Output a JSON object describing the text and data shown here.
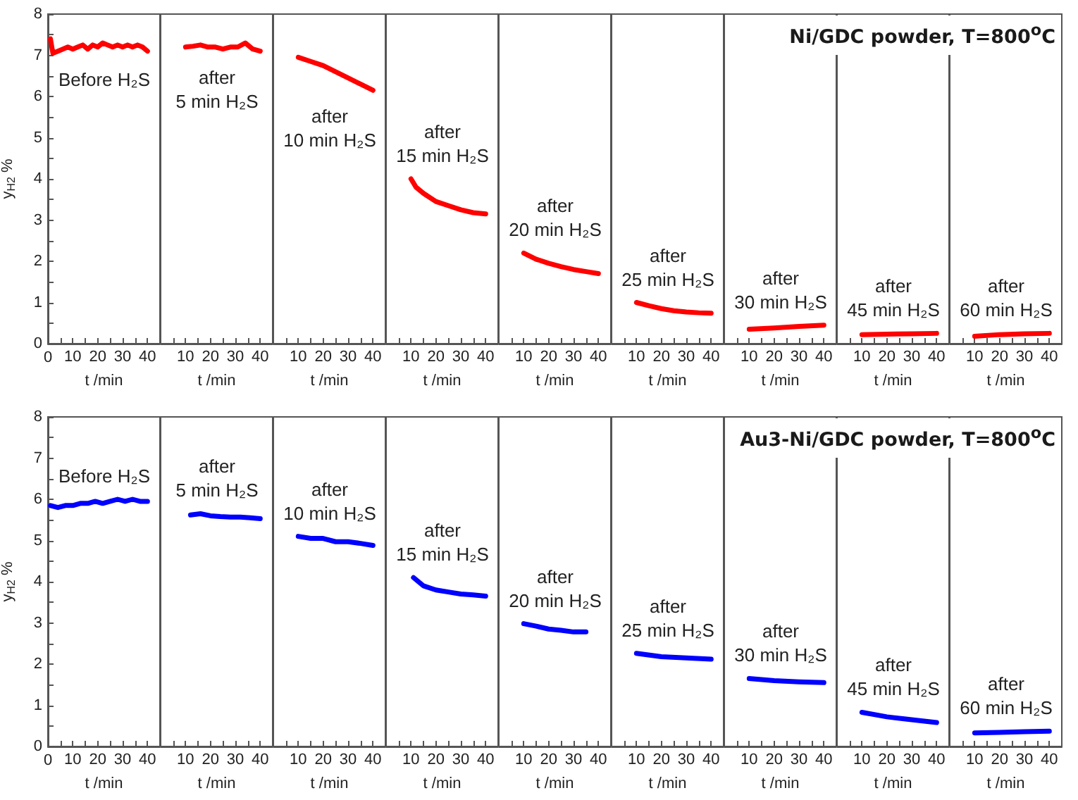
{
  "chart_data": [
    {
      "type": "line",
      "ylabel": "y$_{H2}$ %",
      "xlabel": "t /min",
      "annotations": [
        "Before H₂S"
      ],
      "xlim": [
        0,
        45
      ],
      "ylim": [
        0,
        8
      ],
      "xticks": [
        0,
        {
          "value": 5,
          "label": null
        },
        10,
        {
          "value": 15,
          "label": null
        },
        20,
        {
          "value": 25,
          "label": null
        },
        30,
        {
          "value": 35,
          "label": null
        },
        40
      ],
      "yticks": [
        0,
        {
          "value": 0.5,
          "label": null
        },
        1,
        {
          "value": 1.5,
          "label": null
        },
        2,
        {
          "value": 2.5,
          "label": null
        },
        3,
        {
          "value": 3.5,
          "label": null
        },
        4,
        {
          "value": 4.5,
          "label": null
        },
        5,
        {
          "value": 5.5,
          "label": null
        },
        6,
        {
          "value": 6.5,
          "label": null
        },
        7,
        {
          "value": 7.5,
          "label": null
        },
        8
      ],
      "series": [
        {
          "color": "#ff0000",
          "x": [
            1,
            2,
            4,
            6,
            8,
            10,
            12,
            14,
            16,
            18,
            20,
            22,
            24,
            26,
            28,
            30,
            32,
            34,
            36,
            38,
            40
          ],
          "values": [
            7.4,
            7.05,
            7.1,
            7.15,
            7.2,
            7.15,
            7.2,
            7.25,
            7.15,
            7.25,
            7.2,
            7.3,
            7.25,
            7.2,
            7.25,
            7.2,
            7.25,
            7.2,
            7.25,
            7.2,
            7.1
          ]
        }
      ],
      "marker": "none",
      "line_style": "solid"
    },
    {
      "type": "line",
      "xlabel": "t /min",
      "annotations": [
        "after\n5 min H₂S"
      ],
      "xlim": [
        0,
        45
      ],
      "ylim": [
        0,
        8
      ],
      "tick_labels": "x",
      "xticks": [
        {
          "value": 5,
          "label": null
        },
        10,
        {
          "value": 15,
          "label": null
        },
        20,
        {
          "value": 25,
          "label": null
        },
        30,
        {
          "value": 35,
          "label": null
        },
        40
      ],
      "series": [
        {
          "color": "#ff0000",
          "x": [
            10,
            13,
            16,
            19,
            22,
            25,
            28,
            31,
            34,
            37,
            40
          ],
          "values": [
            7.2,
            7.22,
            7.25,
            7.2,
            7.2,
            7.15,
            7.2,
            7.2,
            7.3,
            7.15,
            7.1
          ]
        }
      ],
      "marker": "none",
      "line_style": "solid"
    },
    {
      "type": "line",
      "xlabel": "t /min",
      "annotations": [
        "after\n10 min H₂S"
      ],
      "xlim": [
        0,
        45
      ],
      "ylim": [
        0,
        8
      ],
      "tick_labels": "x",
      "xticks": [
        {
          "value": 5,
          "label": null
        },
        10,
        {
          "value": 15,
          "label": null
        },
        20,
        {
          "value": 25,
          "label": null
        },
        30,
        {
          "value": 35,
          "label": null
        },
        40
      ],
      "series": [
        {
          "color": "#ff0000",
          "x": [
            10,
            15,
            20,
            25,
            30,
            35,
            40
          ],
          "values": [
            6.95,
            6.85,
            6.75,
            6.6,
            6.45,
            6.3,
            6.15
          ]
        }
      ],
      "marker": "none",
      "line_style": "solid"
    },
    {
      "type": "line",
      "xlabel": "t /min",
      "annotations": [
        "after\n15 min H₂S"
      ],
      "xlim": [
        0,
        45
      ],
      "ylim": [
        0,
        8
      ],
      "tick_labels": "x",
      "xticks": [
        {
          "value": 5,
          "label": null
        },
        10,
        {
          "value": 15,
          "label": null
        },
        20,
        {
          "value": 25,
          "label": null
        },
        30,
        {
          "value": 35,
          "label": null
        },
        40
      ],
      "series": [
        {
          "color": "#ff0000",
          "x": [
            10,
            12,
            15,
            20,
            25,
            30,
            35,
            40
          ],
          "values": [
            4.0,
            3.8,
            3.65,
            3.45,
            3.35,
            3.25,
            3.18,
            3.15
          ]
        }
      ],
      "marker": "none",
      "line_style": "solid"
    },
    {
      "type": "line",
      "xlabel": "t /min",
      "annotations": [
        "after\n20 min H₂S"
      ],
      "xlim": [
        0,
        45
      ],
      "ylim": [
        0,
        8
      ],
      "tick_labels": "x",
      "xticks": [
        {
          "value": 5,
          "label": null
        },
        10,
        {
          "value": 15,
          "label": null
        },
        20,
        {
          "value": 25,
          "label": null
        },
        30,
        {
          "value": 35,
          "label": null
        },
        40
      ],
      "series": [
        {
          "color": "#ff0000",
          "x": [
            10,
            15,
            20,
            25,
            30,
            35,
            40
          ],
          "values": [
            2.2,
            2.05,
            1.95,
            1.87,
            1.8,
            1.75,
            1.7
          ]
        }
      ],
      "marker": "none",
      "line_style": "solid"
    },
    {
      "type": "line",
      "xlabel": "t /min",
      "annotations": [
        "after\n25 min H₂S"
      ],
      "xlim": [
        0,
        45
      ],
      "ylim": [
        0,
        8
      ],
      "tick_labels": "x",
      "xticks": [
        {
          "value": 5,
          "label": null
        },
        10,
        {
          "value": 15,
          "label": null
        },
        20,
        {
          "value": 25,
          "label": null
        },
        30,
        {
          "value": 35,
          "label": null
        },
        40
      ],
      "series": [
        {
          "color": "#ff0000",
          "x": [
            10,
            15,
            20,
            25,
            30,
            35,
            40
          ],
          "values": [
            1.0,
            0.92,
            0.85,
            0.8,
            0.77,
            0.75,
            0.74
          ]
        }
      ],
      "marker": "none",
      "line_style": "solid"
    },
    {
      "type": "line",
      "xlabel": "t /min",
      "annotations": [
        "after\n30 min H₂S"
      ],
      "xlim": [
        0,
        45
      ],
      "ylim": [
        0,
        8
      ],
      "tick_labels": "x",
      "xticks": [
        {
          "value": 5,
          "label": null
        },
        10,
        {
          "value": 15,
          "label": null
        },
        20,
        {
          "value": 25,
          "label": null
        },
        30,
        {
          "value": 35,
          "label": null
        },
        40
      ],
      "series": [
        {
          "color": "#ff0000",
          "x": [
            10,
            20,
            30,
            40
          ],
          "values": [
            0.35,
            0.38,
            0.42,
            0.45
          ]
        }
      ],
      "marker": "none",
      "line_style": "solid"
    },
    {
      "type": "line",
      "xlabel": "t /min",
      "annotations": [
        "after\n45 min H₂S"
      ],
      "xlim": [
        0,
        45
      ],
      "ylim": [
        0,
        8
      ],
      "tick_labels": "x",
      "xticks": [
        {
          "value": 5,
          "label": null
        },
        10,
        {
          "value": 15,
          "label": null
        },
        20,
        {
          "value": 25,
          "label": null
        },
        30,
        {
          "value": 35,
          "label": null
        },
        40
      ],
      "series": [
        {
          "color": "#ff0000",
          "x": [
            10,
            20,
            30,
            40
          ],
          "values": [
            0.22,
            0.23,
            0.24,
            0.25
          ]
        }
      ],
      "marker": "none",
      "line_style": "solid"
    },
    {
      "type": "line",
      "title": "Ni/GDC  powder, T=800$^{o}$C",
      "xlabel": "t /min",
      "annotations": [
        "after\n60 min H₂S"
      ],
      "xlim": [
        0,
        45
      ],
      "ylim": [
        0,
        8
      ],
      "tick_labels": "x",
      "xticks": [
        {
          "value": 5,
          "label": null
        },
        10,
        {
          "value": 15,
          "label": null
        },
        20,
        {
          "value": 25,
          "label": null
        },
        30,
        {
          "value": 35,
          "label": null
        },
        40
      ],
      "series": [
        {
          "color": "#ff0000",
          "x": [
            10,
            20,
            30,
            40
          ],
          "values": [
            0.18,
            0.22,
            0.24,
            0.25
          ]
        }
      ],
      "marker": "none",
      "line_style": "solid"
    },
    {
      "type": "line",
      "ylabel": "y$_{H2}$ %",
      "xlabel": "t /min",
      "annotations": [
        "Before H₂S"
      ],
      "xlim": [
        0,
        45
      ],
      "ylim": [
        0,
        8
      ],
      "xticks": [
        0,
        {
          "value": 5,
          "label": null
        },
        10,
        {
          "value": 15,
          "label": null
        },
        20,
        {
          "value": 25,
          "label": null
        },
        30,
        {
          "value": 35,
          "label": null
        },
        40
      ],
      "yticks": [
        0,
        {
          "value": 0.5,
          "label": null
        },
        1,
        {
          "value": 1.5,
          "label": null
        },
        2,
        {
          "value": 2.5,
          "label": null
        },
        3,
        {
          "value": 3.5,
          "label": null
        },
        4,
        {
          "value": 4.5,
          "label": null
        },
        5,
        {
          "value": 5.5,
          "label": null
        },
        6,
        {
          "value": 6.5,
          "label": null
        },
        7,
        {
          "value": 7.5,
          "label": null
        },
        8
      ],
      "series": [
        {
          "color": "#0000ff",
          "x": [
            1,
            4,
            7,
            10,
            13,
            16,
            19,
            22,
            25,
            28,
            31,
            34,
            37,
            40
          ],
          "values": [
            5.85,
            5.8,
            5.85,
            5.85,
            5.9,
            5.9,
            5.95,
            5.9,
            5.95,
            6.0,
            5.95,
            6.0,
            5.95,
            5.95
          ]
        }
      ],
      "marker": "none",
      "line_style": "solid"
    },
    {
      "type": "line",
      "xlabel": "t /min",
      "annotations": [
        "after\n5 min H₂S"
      ],
      "xlim": [
        0,
        45
      ],
      "ylim": [
        0,
        8
      ],
      "tick_labels": "x",
      "xticks": [
        {
          "value": 5,
          "label": null
        },
        10,
        {
          "value": 15,
          "label": null
        },
        20,
        {
          "value": 25,
          "label": null
        },
        30,
        {
          "value": 35,
          "label": null
        },
        40
      ],
      "series": [
        {
          "color": "#0000ff",
          "x": [
            12,
            16,
            20,
            24,
            28,
            32,
            36,
            40
          ],
          "values": [
            5.62,
            5.65,
            5.6,
            5.58,
            5.57,
            5.57,
            5.55,
            5.53
          ]
        }
      ],
      "marker": "none",
      "line_style": "solid"
    },
    {
      "type": "line",
      "xlabel": "t /min",
      "annotations": [
        "after\n10 min H₂S"
      ],
      "xlim": [
        0,
        45
      ],
      "ylim": [
        0,
        8
      ],
      "tick_labels": "x",
      "xticks": [
        {
          "value": 5,
          "label": null
        },
        10,
        {
          "value": 15,
          "label": null
        },
        20,
        {
          "value": 25,
          "label": null
        },
        30,
        {
          "value": 35,
          "label": null
        },
        40
      ],
      "series": [
        {
          "color": "#0000ff",
          "x": [
            10,
            15,
            20,
            25,
            30,
            35,
            40
          ],
          "values": [
            5.1,
            5.05,
            5.05,
            4.97,
            4.97,
            4.93,
            4.88
          ]
        }
      ],
      "marker": "none",
      "line_style": "solid"
    },
    {
      "type": "line",
      "xlabel": "t /min",
      "annotations": [
        "after\n15 min H₂S"
      ],
      "xlim": [
        0,
        45
      ],
      "ylim": [
        0,
        8
      ],
      "tick_labels": "x",
      "xticks": [
        {
          "value": 5,
          "label": null
        },
        10,
        {
          "value": 15,
          "label": null
        },
        20,
        {
          "value": 25,
          "label": null
        },
        30,
        {
          "value": 35,
          "label": null
        },
        40
      ],
      "series": [
        {
          "color": "#0000ff",
          "x": [
            11,
            15,
            20,
            25,
            30,
            35,
            40
          ],
          "values": [
            4.1,
            3.9,
            3.8,
            3.75,
            3.7,
            3.68,
            3.65
          ]
        }
      ],
      "marker": "none",
      "line_style": "solid"
    },
    {
      "type": "line",
      "xlabel": "t /min",
      "annotations": [
        "after\n20 min H₂S"
      ],
      "xlim": [
        0,
        45
      ],
      "ylim": [
        0,
        8
      ],
      "tick_labels": "x",
      "xticks": [
        {
          "value": 5,
          "label": null
        },
        10,
        {
          "value": 15,
          "label": null
        },
        20,
        {
          "value": 25,
          "label": null
        },
        30,
        {
          "value": 35,
          "label": null
        },
        40
      ],
      "series": [
        {
          "color": "#0000ff",
          "x": [
            10,
            15,
            20,
            25,
            30,
            35
          ],
          "values": [
            2.98,
            2.92,
            2.85,
            2.82,
            2.78,
            2.78
          ]
        }
      ],
      "marker": "none",
      "line_style": "solid"
    },
    {
      "type": "line",
      "xlabel": "t /min",
      "annotations": [
        "after\n25 min H₂S"
      ],
      "xlim": [
        0,
        45
      ],
      "ylim": [
        0,
        8
      ],
      "tick_labels": "x",
      "xticks": [
        {
          "value": 5,
          "label": null
        },
        10,
        {
          "value": 15,
          "label": null
        },
        20,
        {
          "value": 25,
          "label": null
        },
        30,
        {
          "value": 35,
          "label": null
        },
        40
      ],
      "series": [
        {
          "color": "#0000ff",
          "x": [
            10,
            20,
            30,
            40
          ],
          "values": [
            2.26,
            2.18,
            2.15,
            2.12
          ]
        }
      ],
      "marker": "none",
      "line_style": "solid"
    },
    {
      "type": "line",
      "xlabel": "t /min",
      "annotations": [
        "after\n30 min H₂S"
      ],
      "xlim": [
        0,
        45
      ],
      "ylim": [
        0,
        8
      ],
      "tick_labels": "x",
      "xticks": [
        {
          "value": 5,
          "label": null
        },
        10,
        {
          "value": 15,
          "label": null
        },
        20,
        {
          "value": 25,
          "label": null
        },
        30,
        {
          "value": 35,
          "label": null
        },
        40
      ],
      "series": [
        {
          "color": "#0000ff",
          "x": [
            10,
            20,
            30,
            40
          ],
          "values": [
            1.65,
            1.6,
            1.57,
            1.55
          ]
        }
      ],
      "marker": "none",
      "line_style": "solid"
    },
    {
      "type": "line",
      "xlabel": "t /min",
      "annotations": [
        "after\n45 min H₂S"
      ],
      "xlim": [
        0,
        45
      ],
      "ylim": [
        0,
        8
      ],
      "tick_labels": "x",
      "xticks": [
        {
          "value": 5,
          "label": null
        },
        10,
        {
          "value": 15,
          "label": null
        },
        20,
        {
          "value": 25,
          "label": null
        },
        30,
        {
          "value": 35,
          "label": null
        },
        40
      ],
      "series": [
        {
          "color": "#0000ff",
          "x": [
            10,
            20,
            30,
            40
          ],
          "values": [
            0.83,
            0.72,
            0.65,
            0.58
          ]
        }
      ],
      "marker": "none",
      "line_style": "solid"
    },
    {
      "type": "line",
      "title": "Au3-Ni/GDC  powder, T=800$^{o}$C",
      "xlabel": "t /min",
      "annotations": [
        "after\n60 min H₂S"
      ],
      "xlim": [
        0,
        45
      ],
      "ylim": [
        0,
        8
      ],
      "tick_labels": "x",
      "xticks": [
        {
          "value": 5,
          "label": null
        },
        10,
        {
          "value": 15,
          "label": null
        },
        20,
        {
          "value": 25,
          "label": null
        },
        30,
        {
          "value": 35,
          "label": null
        },
        40
      ],
      "series": [
        {
          "color": "#0000ff",
          "x": [
            10,
            20,
            30,
            40
          ],
          "values": [
            0.33,
            0.34,
            0.36,
            0.37
          ]
        }
      ],
      "marker": "none",
      "line_style": "solid"
    }
  ]
}
